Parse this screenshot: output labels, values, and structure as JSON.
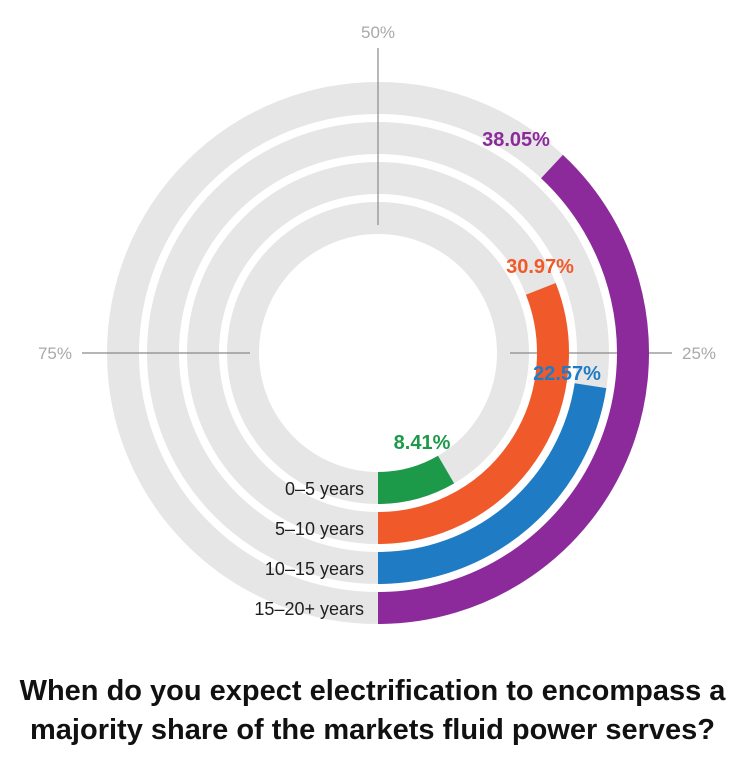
{
  "chart_data": {
    "type": "radial-bar",
    "title": "When do you expect electrification to encompass a majority share of the markets fluid power serves?",
    "axis_ticks": [
      {
        "value": 25,
        "label": "25%"
      },
      {
        "value": 50,
        "label": "50%"
      },
      {
        "value": 75,
        "label": "75%"
      }
    ],
    "axis_max": 100,
    "categories": [
      "0–5 years",
      "5–10 years",
      "10–15 years",
      "15–20+ years"
    ],
    "values": [
      8.41,
      30.97,
      22.57,
      38.05
    ],
    "value_labels": [
      "8.41%",
      "30.97%",
      "22.57%",
      "38.05%"
    ],
    "colors": [
      "#1c9a4a",
      "#f05a2b",
      "#1f7cc4",
      "#8c2a9c"
    ],
    "track_color": "#e6e6e6",
    "grid": true
  }
}
